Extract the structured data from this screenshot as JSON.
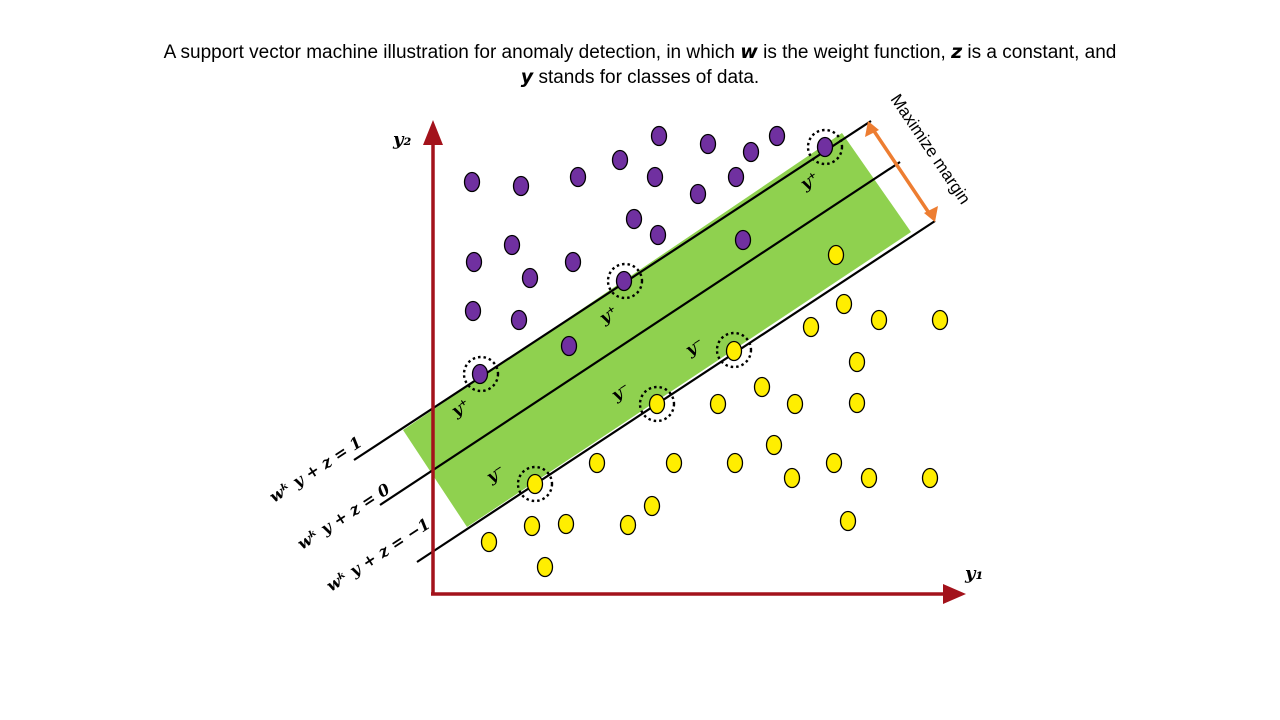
{
  "caption": {
    "part1": "A support vector machine illustration for anomaly detection, in which ",
    "w_symbol": "w",
    "part2": "  is the weight function, ",
    "z_symbol": "z",
    "part3": " is a constant, and ",
    "y_symbol": "y",
    "part4": " stands for classes of data."
  },
  "axes": {
    "x_label": "y₁",
    "y_label": "y₂"
  },
  "lines": {
    "upper": "wᵏ y + z = 1",
    "middle": "wᵏ y + z = 0",
    "lower": "wᵏ y + z = −1"
  },
  "margin_label": "Maximize margin",
  "support_labels": {
    "plus": "y⁺",
    "minus": "y⁻"
  },
  "colors": {
    "axis": "#a3121b",
    "band": "#8fd14f",
    "purple": "#7030a0",
    "yellow": "#ffee00",
    "arrow": "#ed7d31"
  },
  "points": {
    "purple": [
      [
        472,
        182
      ],
      [
        521,
        186
      ],
      [
        578,
        177
      ],
      [
        620,
        160
      ],
      [
        659,
        136
      ],
      [
        708,
        144
      ],
      [
        655,
        177
      ],
      [
        698,
        194
      ],
      [
        751,
        152
      ],
      [
        777,
        136
      ],
      [
        736,
        177
      ],
      [
        825,
        147
      ],
      [
        634,
        219
      ],
      [
        658,
        235
      ],
      [
        743,
        240
      ],
      [
        474,
        262
      ],
      [
        512,
        245
      ],
      [
        530,
        278
      ],
      [
        573,
        262
      ],
      [
        624,
        281
      ],
      [
        473,
        311
      ],
      [
        519,
        320
      ],
      [
        569,
        346
      ],
      [
        480,
        374
      ]
    ],
    "yellow": [
      [
        836,
        255
      ],
      [
        844,
        304
      ],
      [
        811,
        327
      ],
      [
        879,
        320
      ],
      [
        940,
        320
      ],
      [
        857,
        362
      ],
      [
        734,
        351
      ],
      [
        762,
        387
      ],
      [
        718,
        404
      ],
      [
        795,
        404
      ],
      [
        857,
        403
      ],
      [
        657,
        404
      ],
      [
        774,
        445
      ],
      [
        597,
        463
      ],
      [
        674,
        463
      ],
      [
        735,
        463
      ],
      [
        792,
        478
      ],
      [
        834,
        463
      ],
      [
        869,
        478
      ],
      [
        930,
        478
      ],
      [
        535,
        484
      ],
      [
        652,
        506
      ],
      [
        532,
        526
      ],
      [
        566,
        524
      ],
      [
        628,
        525
      ],
      [
        848,
        521
      ],
      [
        489,
        542
      ],
      [
        545,
        567
      ]
    ],
    "support_vectors": [
      [
        481,
        374
      ],
      [
        625,
        281
      ],
      [
        825,
        147
      ],
      [
        535,
        484
      ],
      [
        657,
        404
      ],
      [
        734,
        350
      ]
    ]
  }
}
